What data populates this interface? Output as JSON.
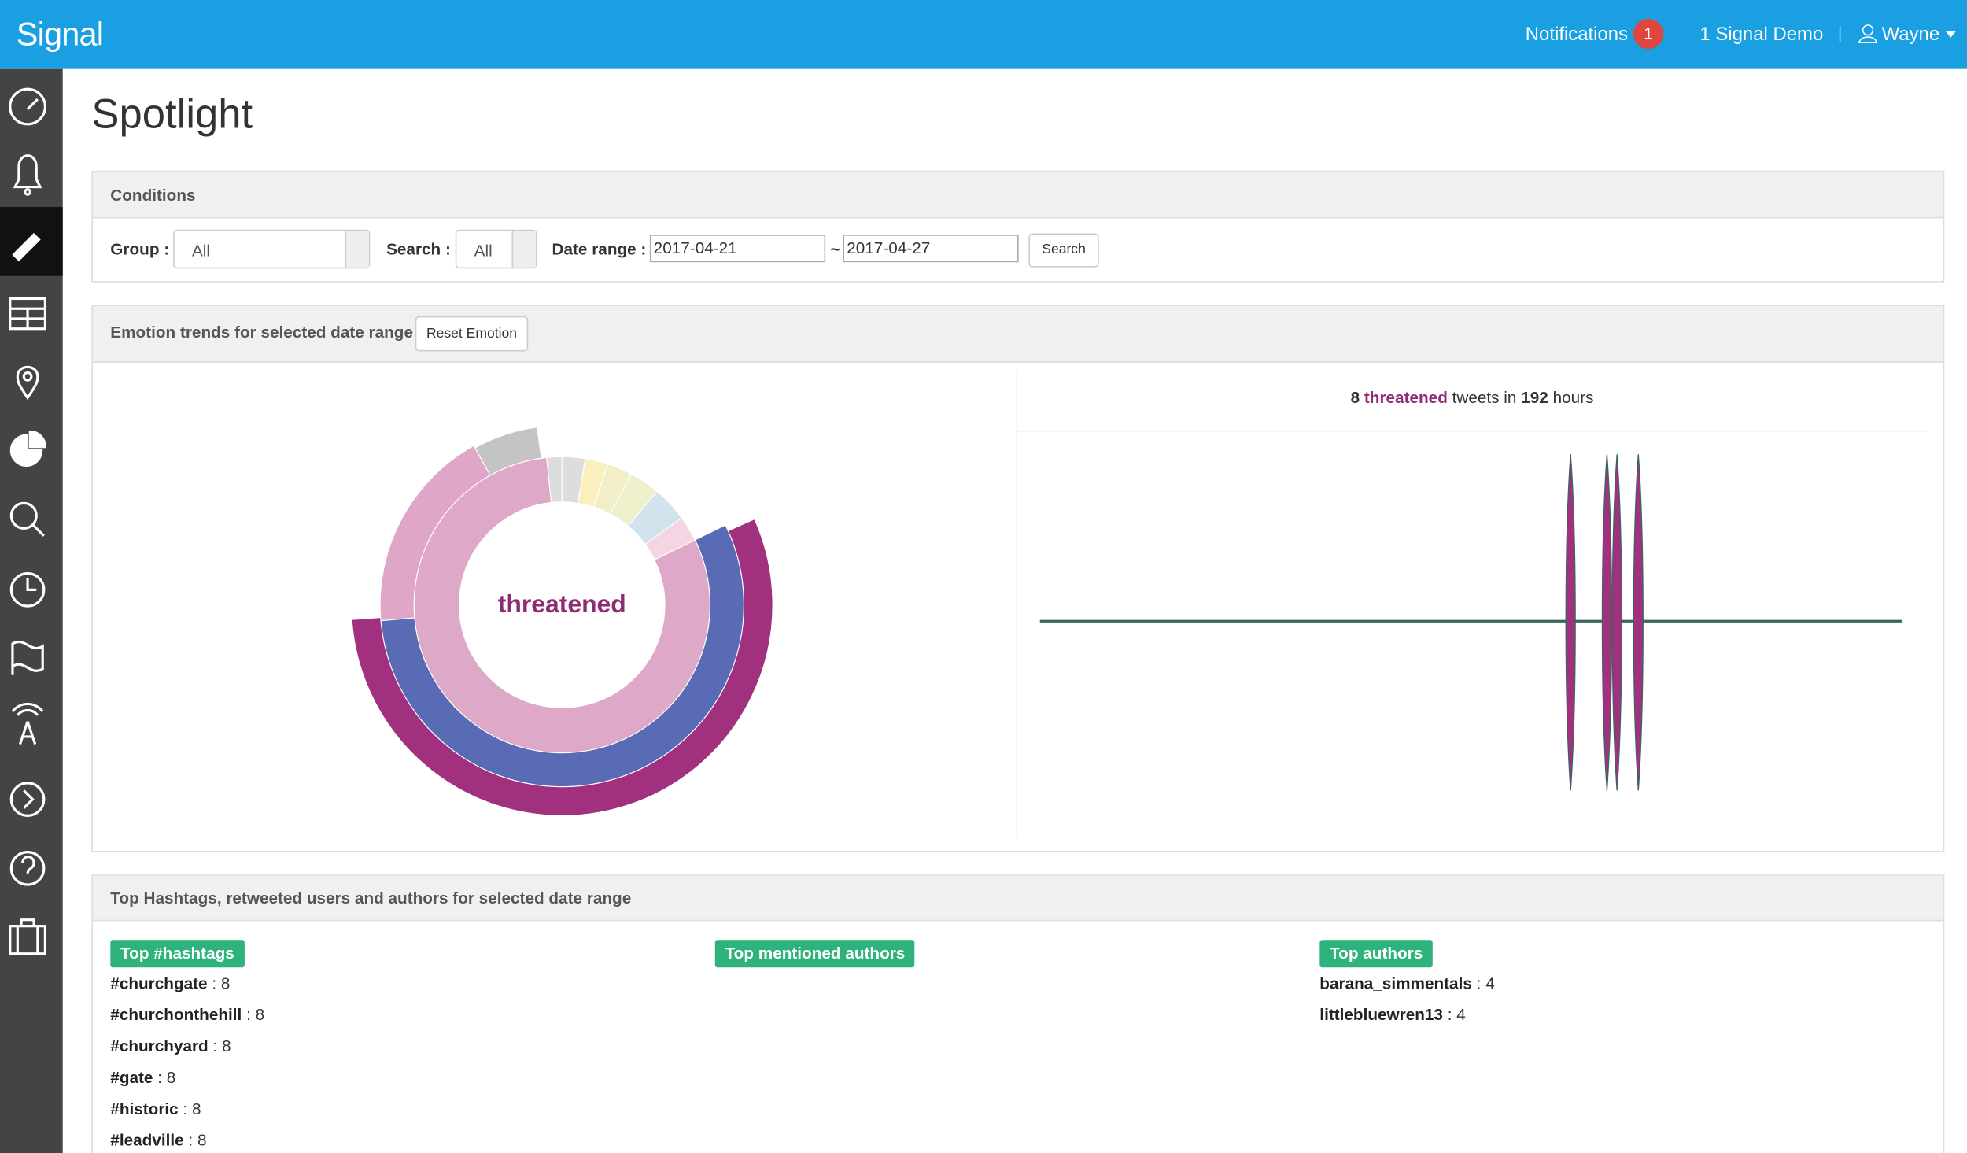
{
  "header": {
    "brand": "Signal",
    "notifications": "Notifications",
    "notification_count": 1,
    "org": "1 Signal Demo",
    "user": "Wayne"
  },
  "page_title": "Spotlight",
  "conditions": {
    "title": "Conditions",
    "group_label": "Group :",
    "group_value": "All",
    "search_label": "Search :",
    "search_value": "All",
    "date_label": "Date range :",
    "date_from": "2017-04-21",
    "date_separator": "~",
    "date_to": "2017-04-27",
    "button": "Search"
  },
  "emotion": {
    "title": "Emotion trends for selected date range",
    "reset_button": "Reset Emotion",
    "center_label": "threatened",
    "summary": {
      "count": 8,
      "emotion": "threatened",
      "text_middle": "tweets in",
      "hours": 192,
      "text_end": "hours"
    }
  },
  "top": {
    "title": "Top Hashtags, retweeted users and authors for selected date range",
    "item_separator": ":",
    "hashtags": {
      "label": "Top #hashtags",
      "items": [
        {
          "name": "#churchgate",
          "count": 8
        },
        {
          "name": "#churchonthehill",
          "count": 8
        },
        {
          "name": "#churchyard",
          "count": 8
        },
        {
          "name": "#gate",
          "count": 8
        },
        {
          "name": "#historic",
          "count": 8
        },
        {
          "name": "#leadville",
          "count": 8
        }
      ]
    },
    "mentioned": {
      "label": "Top mentioned authors",
      "items": []
    },
    "authors": {
      "label": "Top authors",
      "items": [
        {
          "name": "barana_simmentals",
          "count": 4
        },
        {
          "name": "littlebluewren13",
          "count": 4
        }
      ]
    }
  }
}
